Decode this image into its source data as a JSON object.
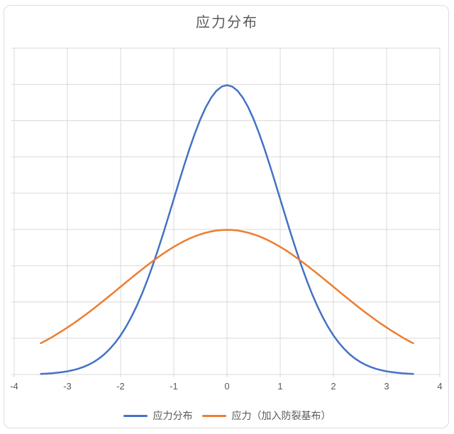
{
  "title": "应力分布",
  "colors": {
    "series1": "#4472C4",
    "series2": "#ED7D31",
    "grid": "#D9D9D9",
    "axis_text": "#595959",
    "title_text": "#595959",
    "frame": "#DCDCDC"
  },
  "x_axis": {
    "tick_labels": [
      "-4",
      "-3",
      "-2",
      "-1",
      "0",
      "1",
      "2",
      "3",
      "4"
    ]
  },
  "legend": {
    "items": [
      {
        "label": "应力分布",
        "color": "#4472C4"
      },
      {
        "label": "应力（加入防裂基布）",
        "color": "#ED7D31"
      }
    ]
  },
  "chart_data": {
    "type": "line",
    "title": "应力分布",
    "xlabel": "",
    "ylabel": "",
    "xlim": [
      -4,
      4
    ],
    "ylim": [
      0,
      0.45
    ],
    "x_ticks": [
      -4,
      -3,
      -2,
      -1,
      0,
      1,
      2,
      3,
      4
    ],
    "y_tick_step": 0.05,
    "y_tick_labels_shown": false,
    "grid": true,
    "legend_position": "bottom",
    "x": [
      -3.5,
      -3.4,
      -3.3,
      -3.2,
      -3.1,
      -3.0,
      -2.9,
      -2.8,
      -2.7,
      -2.6,
      -2.5,
      -2.4,
      -2.3,
      -2.2,
      -2.1,
      -2.0,
      -1.9,
      -1.8,
      -1.7,
      -1.6,
      -1.5,
      -1.4,
      -1.3,
      -1.2,
      -1.1,
      -1.0,
      -0.9,
      -0.8,
      -0.7,
      -0.6,
      -0.5,
      -0.4,
      -0.3,
      -0.2,
      -0.1,
      0.0,
      0.1,
      0.2,
      0.3,
      0.4,
      0.5,
      0.6,
      0.7,
      0.8,
      0.9,
      1.0,
      1.1,
      1.2,
      1.3,
      1.4,
      1.5,
      1.6,
      1.7,
      1.8,
      1.9,
      2.0,
      2.1,
      2.2,
      2.3,
      2.4,
      2.5,
      2.6,
      2.7,
      2.8,
      2.9,
      3.0,
      3.1,
      3.2,
      3.3,
      3.4,
      3.5
    ],
    "series": [
      {
        "name": "应力分布",
        "color": "#4472C4",
        "description": "normal distribution pdf, mean 0, sigma 1",
        "values": [
          0.0009,
          0.0012,
          0.0017,
          0.0024,
          0.0033,
          0.0044,
          0.006,
          0.0079,
          0.0104,
          0.0136,
          0.0175,
          0.0224,
          0.0283,
          0.0355,
          0.044,
          0.054,
          0.0656,
          0.079,
          0.094,
          0.1109,
          0.1295,
          0.1497,
          0.1714,
          0.1942,
          0.2179,
          0.242,
          0.2661,
          0.2897,
          0.3123,
          0.3332,
          0.3521,
          0.3683,
          0.3814,
          0.391,
          0.397,
          0.3989,
          0.397,
          0.391,
          0.3814,
          0.3683,
          0.3521,
          0.3332,
          0.3123,
          0.2897,
          0.2661,
          0.242,
          0.2179,
          0.1942,
          0.1714,
          0.1497,
          0.1295,
          0.1109,
          0.094,
          0.079,
          0.0656,
          0.054,
          0.044,
          0.0355,
          0.0283,
          0.0224,
          0.0175,
          0.0136,
          0.0104,
          0.0079,
          0.006,
          0.0044,
          0.0033,
          0.0024,
          0.0017,
          0.0012,
          0.0009
        ]
      },
      {
        "name": "应力（加入防裂基布）",
        "color": "#ED7D31",
        "description": "normal distribution pdf, mean 0, sigma 2",
        "values": [
          0.0431,
          0.047,
          0.0511,
          0.0555,
          0.06,
          0.0648,
          0.0697,
          0.0749,
          0.0802,
          0.0857,
          0.0913,
          0.0971,
          0.103,
          0.1089,
          0.1149,
          0.121,
          0.127,
          0.133,
          0.139,
          0.1448,
          0.1506,
          0.1561,
          0.1615,
          0.1666,
          0.1715,
          0.176,
          0.1803,
          0.1841,
          0.1876,
          0.1907,
          0.1933,
          0.1955,
          0.1972,
          0.1985,
          0.1992,
          0.1995,
          0.1992,
          0.1985,
          0.1972,
          0.1955,
          0.1933,
          0.1907,
          0.1876,
          0.1841,
          0.1803,
          0.176,
          0.1715,
          0.1666,
          0.1615,
          0.1561,
          0.1506,
          0.1448,
          0.139,
          0.133,
          0.127,
          0.121,
          0.1149,
          0.1089,
          0.103,
          0.0971,
          0.0913,
          0.0857,
          0.0802,
          0.0749,
          0.0697,
          0.0648,
          0.06,
          0.0555,
          0.0511,
          0.047,
          0.0431
        ]
      }
    ]
  }
}
